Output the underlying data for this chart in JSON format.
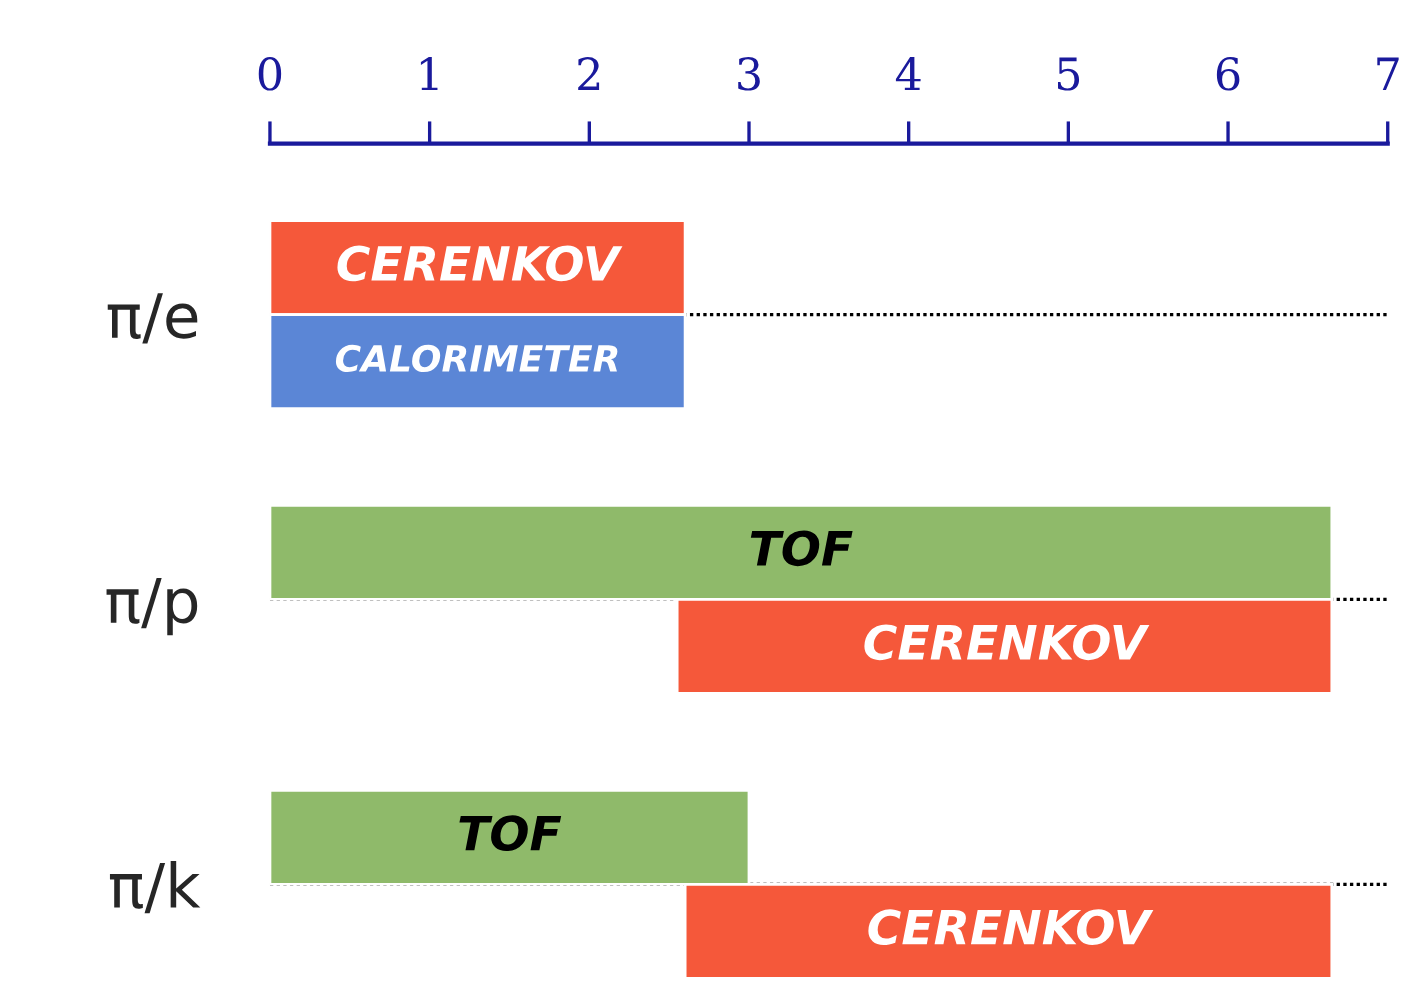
{
  "chart_data": {
    "type": "bar",
    "orientation": "horizontal",
    "categories": [
      "π/e",
      "π/p",
      "π/k"
    ],
    "series": [
      {
        "colors": [
          "#f5583a",
          "#8fba6a",
          "#8fba6a"
        ],
        "base": [
          0,
          0,
          0
        ],
        "values": [
          2.6,
          6.65,
          3.0
        ],
        "value_labels": [
          "CERENKOV",
          "TOF",
          "TOF"
        ]
      },
      {
        "colors": [
          "#5b86d6",
          "#f5583a",
          "#f5583a"
        ],
        "base": [
          0,
          2.55,
          2.6
        ],
        "values": [
          2.6,
          4.1,
          4.05
        ],
        "value_labels": [
          "CALORIMETER",
          "CERENKOV",
          "CERENKOV"
        ]
      }
    ],
    "xlim": [
      0,
      7
    ],
    "xticks": [
      0,
      1,
      2,
      3,
      4,
      5,
      6,
      7
    ],
    "grid": "y"
  }
}
